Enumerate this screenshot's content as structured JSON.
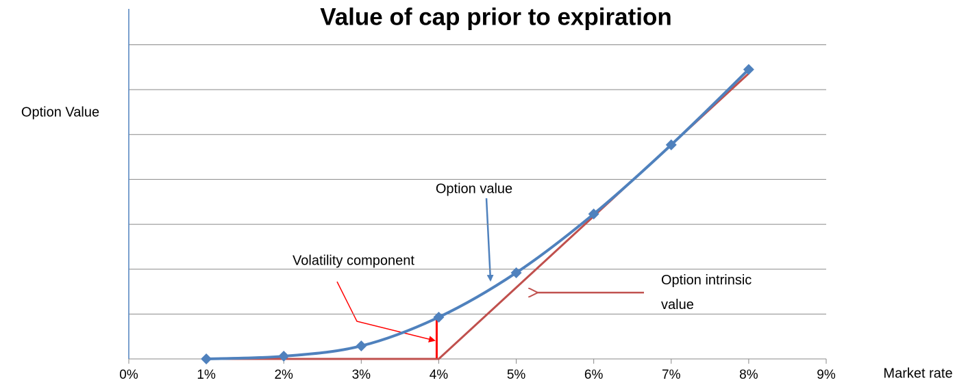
{
  "chart_data": {
    "type": "line",
    "title": "Value of cap prior to expiration",
    "y_label": "Option Value",
    "x_label": "Market rate",
    "x": [
      1,
      2,
      3,
      4,
      5,
      6,
      7,
      8
    ],
    "series": [
      {
        "name": "Option value",
        "color": "#4f81bd",
        "values": [
          0,
          0.06,
          0.29,
          0.93,
          1.92,
          3.23,
          4.77,
          6.45
        ]
      },
      {
        "name": "Option intrinsic value",
        "color": "#c0504d",
        "values": [
          0,
          0,
          0,
          0,
          1.59,
          3.18,
          4.77,
          6.36
        ]
      }
    ],
    "annotations": [
      "Volatility component"
    ],
    "xlim": [
      0,
      9
    ],
    "xticks": [
      {
        "value": 0,
        "label": "0%"
      },
      {
        "value": 1,
        "label": "1%"
      },
      {
        "value": 2,
        "label": "2%"
      },
      {
        "value": 3,
        "label": "3%"
      },
      {
        "value": 4,
        "label": "4%"
      },
      {
        "value": 5,
        "label": "5%"
      },
      {
        "value": 6,
        "label": "6%"
      },
      {
        "value": 7,
        "label": "7%"
      },
      {
        "value": 8,
        "label": "8%"
      },
      {
        "value": 9,
        "label": "9%"
      }
    ],
    "ylim": [
      0,
      7.8
    ],
    "yticks": [
      0,
      1,
      2,
      3,
      4,
      5,
      6,
      7
    ],
    "grid": true
  }
}
